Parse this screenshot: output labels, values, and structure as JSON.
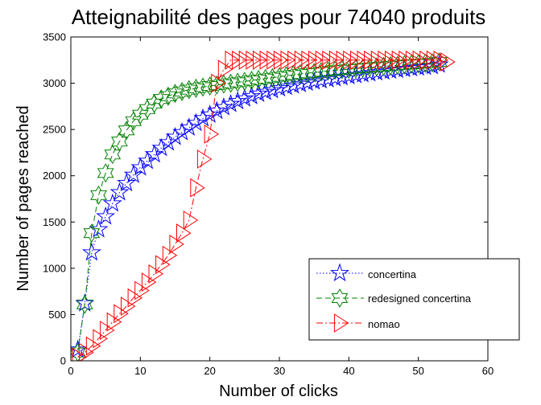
{
  "chart_data": {
    "type": "line",
    "title": "Atteignabilité des pages pour 74040 produits",
    "xlabel": "Number of clicks",
    "ylabel": "Number of pages reached",
    "xlim": [
      0,
      60
    ],
    "ylim": [
      0,
      3500
    ],
    "xticks": [
      "0",
      "10",
      "20",
      "30",
      "40",
      "50",
      "60"
    ],
    "yticks": [
      "0",
      "500",
      "1000",
      "1500",
      "2000",
      "2500",
      "3000",
      "3500"
    ],
    "grid": false,
    "legend_position": "bottom-right",
    "series": [
      {
        "name": "concertina",
        "color": "#0000ff",
        "marker": "pentagram",
        "line_style": "dotted",
        "x": [
          1,
          2,
          3,
          4,
          5,
          6,
          7,
          8,
          9,
          10,
          11,
          12,
          13,
          14,
          15,
          16,
          17,
          18,
          19,
          20,
          21,
          22,
          23,
          24,
          25,
          26,
          27,
          28,
          29,
          30,
          31,
          32,
          33,
          34,
          35,
          36,
          37,
          38,
          39,
          40,
          41,
          42,
          43,
          44,
          45,
          46,
          47,
          48,
          49,
          50,
          51,
          52,
          53
        ],
        "y": [
          120,
          620,
          1170,
          1420,
          1560,
          1700,
          1820,
          1920,
          2010,
          2090,
          2160,
          2230,
          2300,
          2360,
          2420,
          2470,
          2520,
          2570,
          2620,
          2660,
          2700,
          2740,
          2775,
          2805,
          2835,
          2860,
          2885,
          2905,
          2925,
          2945,
          2960,
          2975,
          2990,
          3005,
          3018,
          3030,
          3042,
          3054,
          3065,
          3076,
          3087,
          3097,
          3107,
          3117,
          3126,
          3135,
          3144,
          3153,
          3161,
          3169,
          3177,
          3185,
          3200
        ]
      },
      {
        "name": "redesigned concertina",
        "color": "#008000",
        "marker": "hexagram",
        "line_style": "dashed",
        "x": [
          1,
          2,
          3,
          4,
          5,
          6,
          7,
          8,
          9,
          10,
          11,
          12,
          13,
          14,
          15,
          16,
          17,
          18,
          19,
          20,
          21,
          22,
          23,
          24,
          25,
          26,
          27,
          28,
          29,
          30,
          31,
          32,
          33,
          34,
          35,
          36,
          37,
          38,
          39,
          40,
          41,
          42,
          43,
          44,
          45,
          46,
          47,
          48,
          49,
          50,
          51,
          52,
          53
        ],
        "y": [
          90,
          610,
          1380,
          1790,
          2030,
          2230,
          2370,
          2490,
          2590,
          2660,
          2720,
          2780,
          2830,
          2860,
          2890,
          2910,
          2930,
          2945,
          2958,
          2970,
          2980,
          2990,
          3000,
          3010,
          3020,
          3030,
          3040,
          3050,
          3060,
          3070,
          3080,
          3090,
          3100,
          3108,
          3116,
          3124,
          3132,
          3140,
          3146,
          3152,
          3158,
          3164,
          3170,
          3176,
          3182,
          3188,
          3194,
          3200,
          3205,
          3210,
          3215,
          3220,
          3230
        ]
      },
      {
        "name": "nomao",
        "color": "#ff0000",
        "marker": "triangle-right",
        "line_style": "dashdot",
        "x": [
          1,
          2,
          3,
          4,
          5,
          6,
          7,
          8,
          9,
          10,
          11,
          12,
          13,
          14,
          15,
          16,
          17,
          18,
          19,
          20,
          21,
          22,
          23,
          24,
          25,
          26,
          27,
          28,
          29,
          30,
          31,
          32,
          33,
          34,
          35,
          36,
          37,
          38,
          39,
          40,
          41,
          42,
          43,
          44,
          45,
          46,
          47,
          48,
          49,
          50,
          51,
          52,
          53,
          54
        ],
        "y": [
          40,
          90,
          160,
          240,
          330,
          420,
          510,
          590,
          680,
          760,
          850,
          940,
          1040,
          1140,
          1260,
          1380,
          1520,
          1870,
          2180,
          2450,
          3000,
          3150,
          3250,
          3250,
          3250,
          3250,
          3250,
          3250,
          3250,
          3250,
          3250,
          3250,
          3250,
          3250,
          3250,
          3250,
          3250,
          3250,
          3250,
          3250,
          3250,
          3250,
          3250,
          3250,
          3250,
          3250,
          3250,
          3250,
          3250,
          3250,
          3250,
          3250,
          3250,
          3230
        ]
      }
    ]
  }
}
